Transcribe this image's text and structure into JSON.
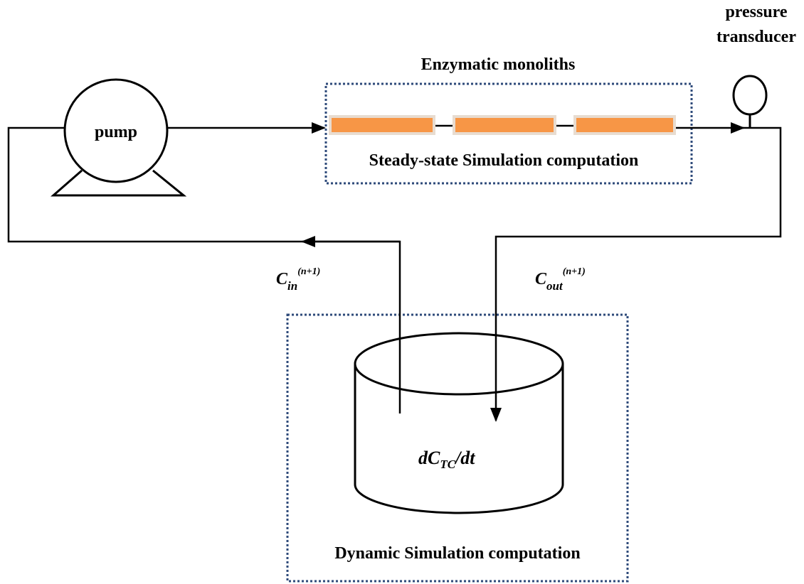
{
  "labels": {
    "pressure_transducer": [
      "pressure",
      "transducer"
    ],
    "enzymatic_monoliths": "Enzymatic monoliths",
    "pump": "pump",
    "steady_state": "Steady-state Simulation computation",
    "c_in": {
      "base": "C",
      "sub": "in",
      "sup": "(n+1)"
    },
    "c_out": {
      "base": "C",
      "sub": "out",
      "sup": "(n+1)"
    },
    "tank": {
      "base": "dC",
      "sub": "TC",
      "rest": "/dt"
    },
    "dynamic": "Dynamic Simulation computation"
  }
}
